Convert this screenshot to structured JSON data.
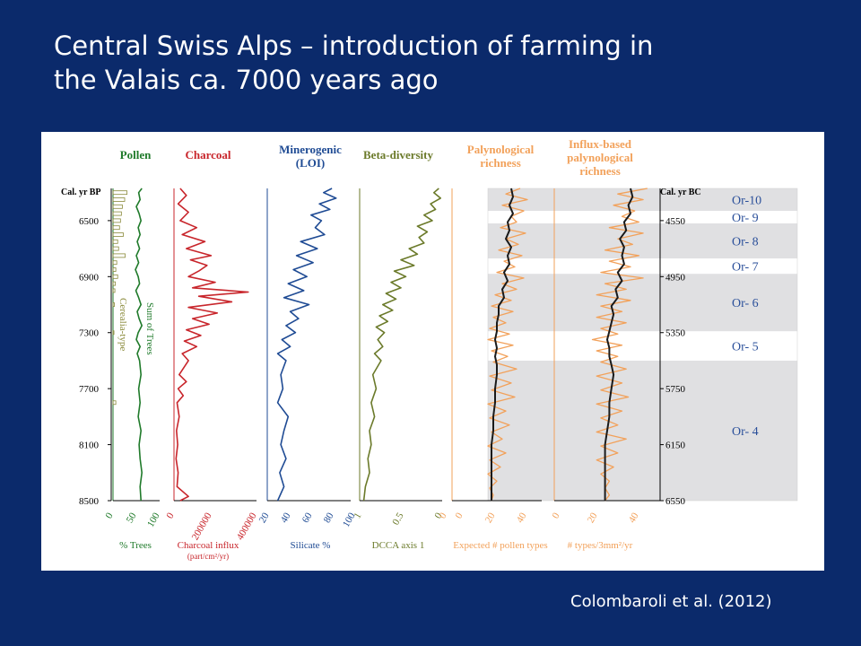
{
  "slide": {
    "title_line1": "Central Swiss Alps – introduction of farming in",
    "title_line2": "the Valais ca. 7000 years ago",
    "citation": "Colombaroli et al. (2012)"
  },
  "colors": {
    "background": "#0b2a6b",
    "pollen": "#1f7a2a",
    "cereal": "#8a8a3a",
    "charcoal": "#c8252b",
    "minerogenic": "#1f4b94",
    "beta": "#6b7a2a",
    "richness": "#f2a15a",
    "smooth": "#1a1a1a",
    "zone_grey": "#e0e0e2",
    "zone_label": "#2a4f9a"
  },
  "chart_data": {
    "type": "line",
    "left_axis": {
      "label": "Cal. yr BP",
      "ticks": [
        6500,
        6900,
        7300,
        7700,
        8100,
        8500
      ],
      "range": [
        6270,
        8500
      ]
    },
    "right_axis": {
      "label": "Cal. yr BC",
      "ticks": [
        4550,
        4950,
        5350,
        5750,
        6150,
        6550
      ]
    },
    "zones": [
      {
        "name": "Or-10",
        "from": 6270,
        "to": 6430,
        "shaded": true
      },
      {
        "name": "Or- 9",
        "from": 6430,
        "to": 6520,
        "shaded": false
      },
      {
        "name": "Or- 8",
        "from": 6520,
        "to": 6770,
        "shaded": true
      },
      {
        "name": "Or- 7",
        "from": 6770,
        "to": 6880,
        "shaded": false
      },
      {
        "name": "Or- 6",
        "from": 6880,
        "to": 7290,
        "shaded": true
      },
      {
        "name": "Or- 5",
        "from": 7290,
        "to": 7500,
        "shaded": false
      },
      {
        "name": "Or- 4",
        "from": 7500,
        "to": 8500,
        "shaded": true
      }
    ],
    "panels": [
      {
        "id": "pollen",
        "title": [
          "Pollen"
        ],
        "xlabel": [
          "% Trees"
        ],
        "ticks": [
          "0",
          "50",
          "100"
        ],
        "xlim": [
          0,
          100
        ],
        "inner_labels": [
          "Sum of Trees",
          "Cerealia-type"
        ],
        "series": [
          {
            "name": "Sum of Trees",
            "y": [
              6270,
              6300,
              6350,
              6400,
              6450,
              6500,
              6550,
              6600,
              6650,
              6700,
              6750,
              6800,
              6850,
              6900,
              6950,
              7000,
              7050,
              7100,
              7150,
              7200,
              7250,
              7300,
              7350,
              7400,
              7450,
              7500,
              7600,
              7700,
              7800,
              7900,
              8000,
              8100,
              8200,
              8300,
              8400,
              8500
            ],
            "values": [
              62,
              55,
              58,
              50,
              56,
              60,
              54,
              58,
              52,
              57,
              50,
              55,
              48,
              54,
              57,
              49,
              55,
              60,
              52,
              56,
              62,
              54,
              50,
              58,
              52,
              57,
              60,
              55,
              58,
              54,
              60,
              56,
              58,
              62,
              58,
              60
            ]
          },
          {
            "name": "Cerealia-type",
            "y": [
              6300,
              6350,
              6400,
              6450,
              6500,
              6550,
              6600,
              6650,
              6700,
              6750,
              6800,
              6850,
              6900,
              6950,
              7000,
              7100,
              7300,
              7800
            ],
            "values": [
              30,
              25,
              20,
              18,
              16,
              14,
              22,
              10,
              12,
              26,
              8,
              6,
              10,
              5,
              4,
              3,
              2,
              6
            ]
          }
        ]
      },
      {
        "id": "charcoal",
        "title": [
          "Charcoal"
        ],
        "xlabel": [
          "Charcoal influx",
          "(part/cm²/yr)"
        ],
        "ticks": [
          "0",
          "200000",
          "400000"
        ],
        "xlim": [
          0,
          400000
        ],
        "series": [
          {
            "name": "Charcoal influx",
            "y": [
              6270,
              6320,
              6380,
              6440,
              6500,
              6550,
              6600,
              6650,
              6700,
              6750,
              6780,
              6820,
              6860,
              6900,
              6940,
              6980,
              7010,
              7040,
              7080,
              7120,
              7160,
              7200,
              7240,
              7280,
              7320,
              7360,
              7400,
              7450,
              7500,
              7600,
              7650,
              7700,
              7750,
              7800,
              7900,
              8000,
              8100,
              8200,
              8300,
              8400,
              8470,
              8500
            ],
            "values": [
              30000,
              60000,
              20000,
              70000,
              30000,
              110000,
              40000,
              150000,
              60000,
              180000,
              80000,
              160000,
              120000,
              70000,
              200000,
              90000,
              360000,
              120000,
              280000,
              70000,
              210000,
              90000,
              170000,
              60000,
              130000,
              50000,
              110000,
              40000,
              70000,
              25000,
              60000,
              20000,
              45000,
              15000,
              25000,
              12000,
              18000,
              10000,
              20000,
              15000,
              70000,
              30000
            ]
          }
        ]
      },
      {
        "id": "minerogenic",
        "title": [
          "Minerogenic",
          "(LOI)"
        ],
        "xlabel": [
          "Silicate %"
        ],
        "ticks": [
          "20",
          "40",
          "60",
          "80",
          "100"
        ],
        "xlim": [
          20,
          100
        ],
        "series": [
          {
            "name": "Silicate %",
            "y": [
              6270,
              6300,
              6340,
              6380,
              6420,
              6460,
              6500,
              6550,
              6600,
              6650,
              6700,
              6750,
              6800,
              6850,
              6900,
              6950,
              7000,
              7050,
              7100,
              7150,
              7200,
              7250,
              7300,
              7350,
              7400,
              7450,
              7500,
              7600,
              7700,
              7800,
              7900,
              8000,
              8100,
              8200,
              8300,
              8400,
              8500
            ],
            "values": [
              82,
              74,
              86,
              70,
              80,
              62,
              72,
              66,
              75,
              52,
              68,
              48,
              64,
              45,
              58,
              40,
              55,
              36,
              60,
              42,
              50,
              38,
              47,
              34,
              42,
              30,
              38,
              33,
              35,
              30,
              40,
              36,
              33,
              38,
              32,
              36,
              30
            ]
          }
        ]
      },
      {
        "id": "beta",
        "title": [
          "Beta-diversity"
        ],
        "xlabel": [
          "DCCA axis 1"
        ],
        "ticks": [
          "1",
          "0.5",
          "0"
        ],
        "xlim": [
          1,
          0
        ],
        "series": [
          {
            "name": "DCCA axis 1",
            "y": [
              6270,
              6300,
              6340,
              6380,
              6420,
              6460,
              6500,
              6540,
              6580,
              6620,
              6660,
              6700,
              6740,
              6780,
              6820,
              6860,
              6900,
              6940,
              6980,
              7020,
              7060,
              7100,
              7140,
              7180,
              7220,
              7260,
              7300,
              7350,
              7400,
              7450,
              7500,
              7600,
              7700,
              7800,
              7900,
              8000,
              8100,
              8200,
              8300,
              8400,
              8500
            ],
            "values": [
              0.04,
              0.1,
              0.02,
              0.14,
              0.08,
              0.22,
              0.12,
              0.3,
              0.18,
              0.28,
              0.22,
              0.4,
              0.3,
              0.5,
              0.34,
              0.58,
              0.44,
              0.62,
              0.5,
              0.68,
              0.56,
              0.72,
              0.6,
              0.76,
              0.66,
              0.8,
              0.7,
              0.78,
              0.72,
              0.82,
              0.74,
              0.84,
              0.8,
              0.86,
              0.82,
              0.88,
              0.86,
              0.9,
              0.88,
              0.93,
              0.95
            ]
          }
        ]
      },
      {
        "id": "richness",
        "title": [
          "Palynological",
          "richness"
        ],
        "xlabel": [
          "Expected # pollen types"
        ],
        "ticks": [
          "0",
          "0",
          "20",
          "40"
        ],
        "xlim": [
          0,
          50
        ],
        "series": [
          {
            "name": "raw",
            "y": [
              6270,
              6310,
              6350,
              6390,
              6430,
              6470,
              6510,
              6550,
              6590,
              6630,
              6670,
              6710,
              6750,
              6790,
              6830,
              6870,
              6910,
              6950,
              6990,
              7030,
              7070,
              7110,
              7150,
              7190,
              7230,
              7270,
              7310,
              7350,
              7390,
              7430,
              7470,
              7510,
              7560,
              7610,
              7660,
              7710,
              7760,
              7810,
              7860,
              7910,
              7960,
              8010,
              8060,
              8110,
              8160,
              8210,
              8260,
              8310,
              8360,
              8410,
              8460,
              8500
            ],
            "values": [
              38,
              30,
              42,
              28,
              40,
              33,
              36,
              27,
              41,
              30,
              37,
              26,
              39,
              29,
              35,
              25,
              40,
              28,
              36,
              24,
              33,
              22,
              34,
              23,
              30,
              21,
              32,
              20,
              34,
              22,
              31,
              23,
              36,
              21,
              33,
              22,
              35,
              20,
              30,
              21,
              32,
              22,
              28,
              20,
              30,
              21,
              27,
              20,
              25,
              21,
              23,
              22
            ]
          },
          {
            "name": "smoothed",
            "y": [
              6270,
              6330,
              6390,
              6450,
              6510,
              6570,
              6630,
              6690,
              6750,
              6810,
              6870,
              6930,
              6990,
              7050,
              7110,
              7170,
              7230,
              7290,
              7350,
              7410,
              7470,
              7530,
              7600,
              7700,
              7800,
              7900,
              8000,
              8100,
              8200,
              8300,
              8400,
              8500
            ],
            "values": [
              33,
              34,
              32,
              34,
              31,
              32,
              30,
              33,
              31,
              32,
              29,
              31,
              28,
              29,
              26,
              26,
              25,
              25,
              24,
              25,
              24,
              25,
              25,
              24,
              24,
              23,
              23,
              22,
              22,
              22,
              22,
              22
            ]
          }
        ]
      },
      {
        "id": "influx",
        "title": [
          "Influx-based",
          "palynological",
          "richness"
        ],
        "xlabel": [
          "# types/3mm²/yr"
        ],
        "ticks": [
          "0",
          "20",
          "40"
        ],
        "xlim": [
          0,
          50
        ],
        "series": [
          {
            "name": "raw",
            "y": [
              6270,
              6310,
              6350,
              6390,
              6430,
              6470,
              6510,
              6550,
              6590,
              6630,
              6670,
              6710,
              6750,
              6790,
              6830,
              6870,
              6910,
              6950,
              6990,
              7030,
              7070,
              7110,
              7150,
              7190,
              7230,
              7270,
              7310,
              7350,
              7390,
              7430,
              7470,
              7510,
              7560,
              7610,
              7660,
              7710,
              7760,
              7810,
              7860,
              7910,
              7960,
              8010,
              8060,
              8110,
              8160,
              8210,
              8260,
              8310,
              8360,
              8410,
              8460,
              8500
            ],
            "values": [
              44,
              30,
              42,
              28,
              38,
              32,
              40,
              26,
              42,
              30,
              37,
              24,
              40,
              26,
              36,
              22,
              42,
              24,
              34,
              20,
              36,
              22,
              32,
              20,
              34,
              22,
              30,
              18,
              32,
              20,
              30,
              22,
              34,
              20,
              32,
              22,
              35,
              20,
              32,
              22,
              30,
              20,
              34,
              22,
              30,
              20,
              28,
              22,
              26,
              24,
              26,
              24
            ]
          },
          {
            "name": "smoothed",
            "y": [
              6270,
              6330,
              6390,
              6450,
              6510,
              6570,
              6630,
              6690,
              6750,
              6810,
              6870,
              6930,
              6990,
              7050,
              7110,
              7170,
              7230,
              7290,
              7350,
              7410,
              7470,
              7530,
              7600,
              7700,
              7800,
              7900,
              8000,
              8100,
              8200,
              8300,
              8400,
              8500
            ],
            "values": [
              36,
              37,
              35,
              36,
              33,
              34,
              31,
              33,
              32,
              33,
              30,
              32,
              29,
              30,
              27,
              28,
              27,
              26,
              25,
              26,
              26,
              27,
              28,
              27,
              26,
              26,
              25,
              24,
              24,
              24,
              24,
              24
            ]
          }
        ]
      }
    ]
  }
}
